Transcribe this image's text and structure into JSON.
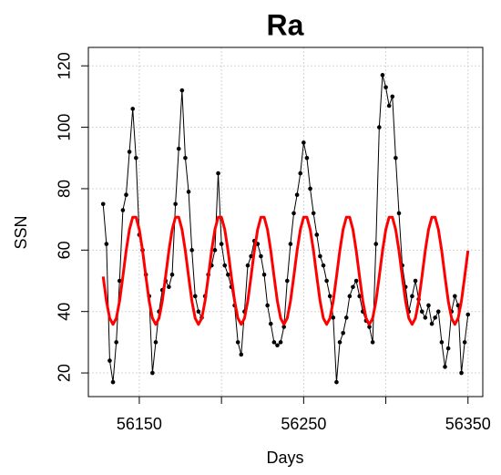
{
  "chart_data": {
    "type": "line",
    "title": "Ra",
    "xlabel": "Days",
    "ylabel": "SSN",
    "x": [
      56128,
      56130,
      56132,
      56134,
      56136,
      56138,
      56140,
      56142,
      56144,
      56146,
      56148,
      56150,
      56152,
      56154,
      56156,
      56158,
      56160,
      56162,
      56164,
      56166,
      56168,
      56170,
      56172,
      56174,
      56176,
      56178,
      56180,
      56182,
      56184,
      56186,
      56188,
      56190,
      56192,
      56194,
      56196,
      56198,
      56200,
      56202,
      56204,
      56206,
      56208,
      56210,
      56212,
      56214,
      56216,
      56218,
      56220,
      56222,
      56224,
      56226,
      56228,
      56230,
      56232,
      56234,
      56236,
      56238,
      56240,
      56242,
      56244,
      56246,
      56248,
      56250,
      56252,
      56254,
      56256,
      56258,
      56260,
      56262,
      56264,
      56266,
      56268,
      56270,
      56272,
      56274,
      56276,
      56278,
      56280,
      56282,
      56284,
      56286,
      56288,
      56290,
      56292,
      56294,
      56296,
      56298,
      56300,
      56302,
      56304,
      56306,
      56308,
      56310,
      56312,
      56314,
      56316,
      56318,
      56320,
      56322,
      56324,
      56326,
      56328,
      56330,
      56332,
      56334,
      56336,
      56338,
      56340,
      56342,
      56344,
      56346,
      56348,
      56350
    ],
    "series": [
      {
        "color": "#000000",
        "values": [
          75,
          62,
          24,
          17,
          30,
          50,
          73,
          78,
          92,
          106,
          90,
          65,
          60,
          52,
          45,
          20,
          30,
          40,
          47,
          50,
          48,
          52,
          75,
          93,
          112,
          90,
          79,
          60,
          45,
          40,
          38,
          45,
          52,
          55,
          60,
          85,
          62,
          55,
          52,
          48,
          42,
          30,
          26,
          40,
          55,
          58,
          63,
          62,
          58,
          52,
          42,
          36,
          30,
          29,
          30,
          35,
          50,
          62,
          72,
          78,
          85,
          95,
          90,
          80,
          72,
          65,
          58,
          55,
          50,
          45,
          38,
          17,
          30,
          33,
          38,
          45,
          48,
          50,
          45,
          40,
          37,
          35,
          30,
          62,
          100,
          117,
          113,
          107,
          110,
          90,
          72,
          55,
          48,
          40,
          45,
          50,
          44,
          40,
          38,
          42,
          36,
          38,
          40,
          30,
          22,
          28,
          40,
          45,
          42,
          20,
          30,
          39
        ]
      },
      {
        "color": "#ff0000",
        "values": [
          51.4,
          43.4,
          37.8,
          35.8,
          37.8,
          43.4,
          51.4,
          59.8,
          66.7,
          70.7,
          70.7,
          66.7,
          59.8,
          51.4,
          43.4,
          37.8,
          35.8,
          37.8,
          43.4,
          51.4,
          59.8,
          66.7,
          70.7,
          70.7,
          66.7,
          59.8,
          51.4,
          43.4,
          37.8,
          35.8,
          37.8,
          43.4,
          51.4,
          59.8,
          66.7,
          70.7,
          70.7,
          66.7,
          59.8,
          51.4,
          43.4,
          37.8,
          35.8,
          37.8,
          43.4,
          51.4,
          59.8,
          66.7,
          70.7,
          70.7,
          66.7,
          59.8,
          51.4,
          43.4,
          37.8,
          35.8,
          37.8,
          43.4,
          51.4,
          59.8,
          66.7,
          70.7,
          70.7,
          66.7,
          59.8,
          51.4,
          43.4,
          37.8,
          35.8,
          37.8,
          43.4,
          51.4,
          59.8,
          66.7,
          70.7,
          70.7,
          66.7,
          59.8,
          51.4,
          43.4,
          37.8,
          35.8,
          37.8,
          43.4,
          51.4,
          59.8,
          66.7,
          70.7,
          70.7,
          66.7,
          59.8,
          51.4,
          43.4,
          37.8,
          35.8,
          37.8,
          43.4,
          51.4,
          59.8,
          66.7,
          70.7,
          70.7,
          66.7,
          59.8,
          51.4,
          43.4,
          37.8,
          35.8,
          37.8,
          43.4,
          51.4,
          59.8
        ]
      }
    ],
    "xlim": [
      56119,
      56359
    ],
    "ylim": [
      12.3,
      126
    ],
    "xticks": [
      56150,
      {
        "value": 56200,
        "label": null
      },
      56250,
      {
        "value": 56300,
        "label": null
      },
      56350
    ],
    "yticks": [
      20,
      40,
      60,
      80,
      100,
      120
    ],
    "grid": true
  }
}
